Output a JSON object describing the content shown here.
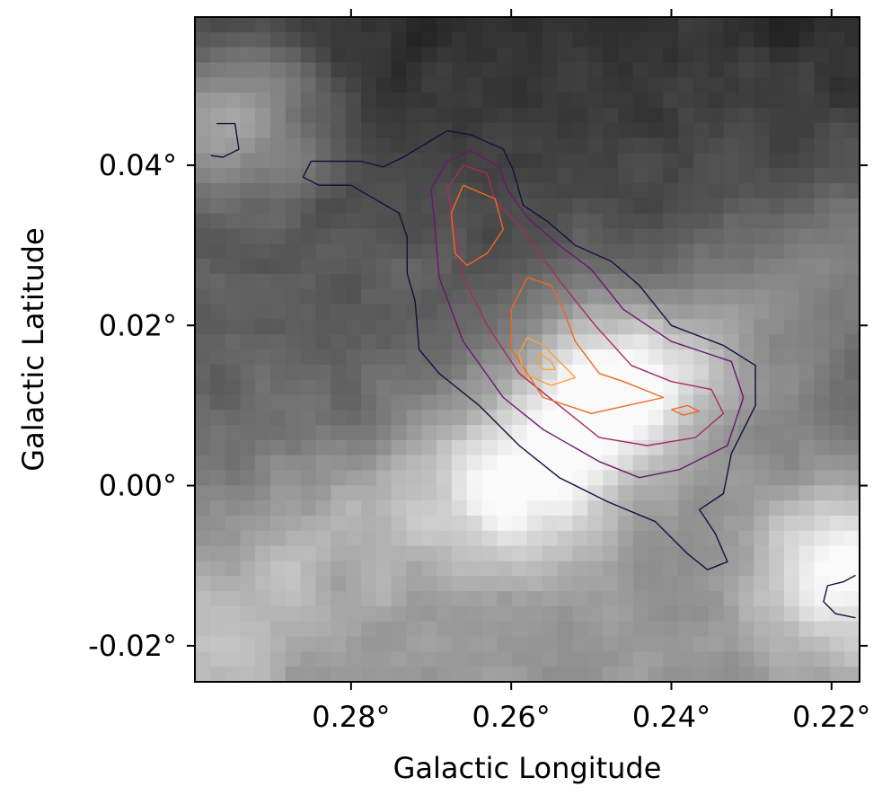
{
  "chart_data": {
    "type": "heatmap",
    "title": "",
    "xlabel": "Galactic Longitude",
    "ylabel": "Galactic Latitude",
    "x_axis": {
      "reversed": true,
      "xlim": [
        0.2995,
        0.2165
      ],
      "ticks": [
        {
          "value": 0.28,
          "label": "0.28°"
        },
        {
          "value": 0.26,
          "label": "0.26°"
        },
        {
          "value": 0.24,
          "label": "0.24°"
        },
        {
          "value": 0.22,
          "label": "0.22°"
        }
      ]
    },
    "y_axis": {
      "ylim": [
        -0.0245,
        0.0585
      ],
      "ticks": [
        {
          "value": 0.04,
          "label": "0.04°"
        },
        {
          "value": 0.02,
          "label": "0.02°"
        },
        {
          "value": 0.0,
          "label": "0.00°"
        },
        {
          "value": -0.02,
          "label": "-0.02°"
        }
      ]
    },
    "background": {
      "colormap": "grayscale",
      "description_levels": "dark in upper region, bright band from lower-right toward center",
      "bright_spots": [
        {
          "l": 0.247,
          "b": 0.012,
          "intensity": 0.95
        },
        {
          "l": 0.218,
          "b": -0.01,
          "intensity": 0.95
        },
        {
          "l": 0.296,
          "b": 0.046,
          "intensity": 0.85
        },
        {
          "l": 0.258,
          "b": -0.002,
          "intensity": 0.8
        }
      ]
    },
    "contours": [
      {
        "level": 1,
        "color": "#1b0c41",
        "paths": [
          [
            [
              0.2968,
              0.0452
            ],
            [
              0.2945,
              0.0452
            ],
            [
              0.294,
              0.042
            ],
            [
              0.296,
              0.041
            ],
            [
              0.2975,
              0.0412
            ]
          ],
          [
            [
              0.285,
              0.0405
            ],
            [
              0.2788,
              0.0405
            ],
            [
              0.276,
              0.0398
            ],
            [
              0.2735,
              0.041
            ],
            [
              0.2705,
              0.0428
            ],
            [
              0.268,
              0.0443
            ],
            [
              0.265,
              0.0438
            ],
            [
              0.261,
              0.042
            ],
            [
              0.2598,
              0.0395
            ],
            [
              0.2585,
              0.035
            ],
            [
              0.2555,
              0.033
            ],
            [
              0.252,
              0.03
            ],
            [
              0.2475,
              0.028
            ],
            [
              0.244,
              0.025
            ],
            [
              0.24,
              0.02
            ],
            [
              0.2335,
              0.0175
            ],
            [
              0.2295,
              0.015
            ],
            [
              0.2295,
              0.01
            ],
            [
              0.2325,
              0.004
            ],
            [
              0.2335,
              -0.001
            ],
            [
              0.2365,
              -0.003
            ],
            [
              0.2345,
              -0.006
            ],
            [
              0.233,
              -0.0095
            ],
            [
              0.2355,
              -0.0105
            ],
            [
              0.238,
              -0.0085
            ],
            [
              0.242,
              -0.0045
            ],
            [
              0.248,
              -0.002
            ],
            [
              0.254,
              0.001
            ],
            [
              0.259,
              0.005
            ],
            [
              0.264,
              0.01
            ],
            [
              0.269,
              0.014
            ],
            [
              0.2715,
              0.017
            ],
            [
              0.272,
              0.023
            ],
            [
              0.273,
              0.0265
            ],
            [
              0.273,
              0.031
            ],
            [
              0.274,
              0.034
            ],
            [
              0.28,
              0.0375
            ],
            [
              0.284,
              0.0375
            ],
            [
              0.286,
              0.0385
            ],
            [
              0.285,
              0.0405
            ]
          ],
          [
            [
              0.217,
              -0.0165
            ],
            [
              0.2195,
              -0.016
            ],
            [
              0.221,
              -0.0145
            ],
            [
              0.2205,
              -0.0125
            ],
            [
              0.2185,
              -0.012
            ],
            [
              0.217,
              -0.0112
            ]
          ]
        ]
      },
      {
        "level": 2,
        "color": "#6a176e",
        "paths": [
          [
            [
              0.265,
              0.0418
            ],
            [
              0.2615,
              0.0398
            ],
            [
              0.2605,
              0.037
            ],
            [
              0.258,
              0.0335
            ],
            [
              0.254,
              0.03
            ],
            [
              0.25,
              0.027
            ],
            [
              0.246,
              0.022
            ],
            [
              0.24,
              0.018
            ],
            [
              0.2325,
              0.0155
            ],
            [
              0.231,
              0.011
            ],
            [
              0.233,
              0.005
            ],
            [
              0.239,
              0.002
            ],
            [
              0.244,
              0.001
            ],
            [
              0.249,
              0.003
            ],
            [
              0.256,
              0.007
            ],
            [
              0.261,
              0.011
            ],
            [
              0.266,
              0.018
            ],
            [
              0.269,
              0.026
            ],
            [
              0.2695,
              0.032
            ],
            [
              0.27,
              0.037
            ],
            [
              0.268,
              0.0405
            ],
            [
              0.265,
              0.0418
            ]
          ]
        ]
      },
      {
        "level": 3,
        "color": "#a52c60",
        "paths": [
          [
            [
              0.266,
              0.04
            ],
            [
              0.263,
              0.039
            ],
            [
              0.262,
              0.0355
            ],
            [
              0.259,
              0.0325
            ],
            [
              0.2565,
              0.029
            ],
            [
              0.2535,
              0.025
            ],
            [
              0.2495,
              0.02
            ],
            [
              0.245,
              0.015
            ],
            [
              0.24,
              0.013
            ],
            [
              0.235,
              0.012
            ],
            [
              0.2335,
              0.009
            ],
            [
              0.237,
              0.006
            ],
            [
              0.243,
              0.005
            ],
            [
              0.249,
              0.006
            ],
            [
              0.254,
              0.01
            ],
            [
              0.259,
              0.014
            ],
            [
              0.263,
              0.02
            ],
            [
              0.266,
              0.026
            ],
            [
              0.267,
              0.032
            ],
            [
              0.268,
              0.037
            ],
            [
              0.266,
              0.04
            ]
          ]
        ]
      },
      {
        "level": 4,
        "color": "#ed6925",
        "paths": [
          [
            [
              0.266,
              0.0375
            ],
            [
              0.262,
              0.0358
            ],
            [
              0.261,
              0.032
            ],
            [
              0.263,
              0.029
            ],
            [
              0.2655,
              0.0275
            ],
            [
              0.267,
              0.029
            ],
            [
              0.2675,
              0.034
            ],
            [
              0.266,
              0.0375
            ]
          ],
          [
            [
              0.258,
              0.026
            ],
            [
              0.255,
              0.025
            ],
            [
              0.2535,
              0.022
            ],
            [
              0.252,
              0.018
            ],
            [
              0.249,
              0.014
            ],
            [
              0.246,
              0.013
            ],
            [
              0.241,
              0.011
            ],
            [
              0.25,
              0.009
            ],
            [
              0.256,
              0.011
            ],
            [
              0.26,
              0.017
            ],
            [
              0.26,
              0.022
            ],
            [
              0.258,
              0.026
            ]
          ],
          [
            [
              0.24,
              0.0095
            ],
            [
              0.238,
              0.01
            ],
            [
              0.2365,
              0.0093
            ],
            [
              0.2385,
              0.0088
            ],
            [
              0.24,
              0.0095
            ]
          ]
        ]
      },
      {
        "level": 5,
        "color": "#fba238",
        "paths": [
          [
            [
              0.258,
              0.0185
            ],
            [
              0.256,
              0.0175
            ],
            [
              0.254,
              0.0155
            ],
            [
              0.252,
              0.0135
            ],
            [
              0.255,
              0.0125
            ],
            [
              0.2585,
              0.014
            ],
            [
              0.259,
              0.0165
            ],
            [
              0.258,
              0.0185
            ]
          ],
          [
            [
              0.2565,
              0.0165
            ],
            [
              0.255,
              0.0155
            ],
            [
              0.2545,
              0.0145
            ],
            [
              0.256,
              0.0145
            ],
            [
              0.2568,
              0.0155
            ],
            [
              0.2565,
              0.0165
            ]
          ]
        ]
      }
    ]
  }
}
